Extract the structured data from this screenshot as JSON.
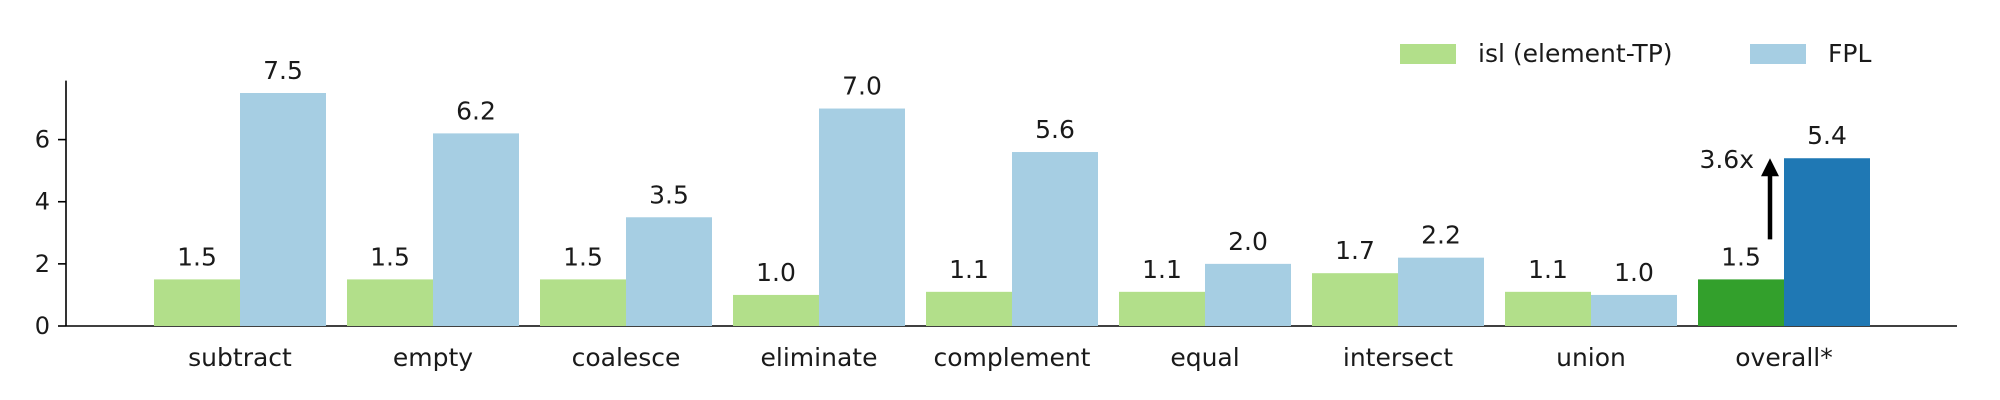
{
  "chart_data": {
    "type": "bar",
    "categories": [
      "subtract",
      "empty",
      "coalesce",
      "eliminate",
      "complement",
      "equal",
      "intersect",
      "union",
      "overall*"
    ],
    "series": [
      {
        "name": "isl (element-TP)",
        "values": [
          1.5,
          1.5,
          1.5,
          1.0,
          1.1,
          1.1,
          1.7,
          1.1,
          1.5
        ],
        "value_labels": [
          "1.5",
          "1.5",
          "1.5",
          "1.0",
          "1.1",
          "1.1",
          "1.7",
          "1.1",
          "1.5"
        ],
        "color": "#b2df8a",
        "highlight_color": "#33a02c"
      },
      {
        "name": "FPL",
        "values": [
          7.5,
          6.2,
          3.5,
          7.0,
          5.6,
          2.0,
          2.2,
          1.0,
          5.4
        ],
        "value_labels": [
          "7.5",
          "6.2",
          "3.5",
          "7.0",
          "5.6",
          "2.0",
          "2.2",
          "1.0",
          "5.4"
        ],
        "color": "#a6cee3",
        "highlight_color": "#1f78b4"
      }
    ],
    "highlight_category": "overall*",
    "annotation": {
      "text": "3.6x",
      "category": "overall*",
      "from": 1.5,
      "to": 5.4
    },
    "title": "",
    "xlabel": "",
    "ylabel": "",
    "ylim": [
      0,
      7.9
    ],
    "yticks": [
      0,
      2,
      4,
      6
    ],
    "legend": "top-right",
    "grid": false
  }
}
